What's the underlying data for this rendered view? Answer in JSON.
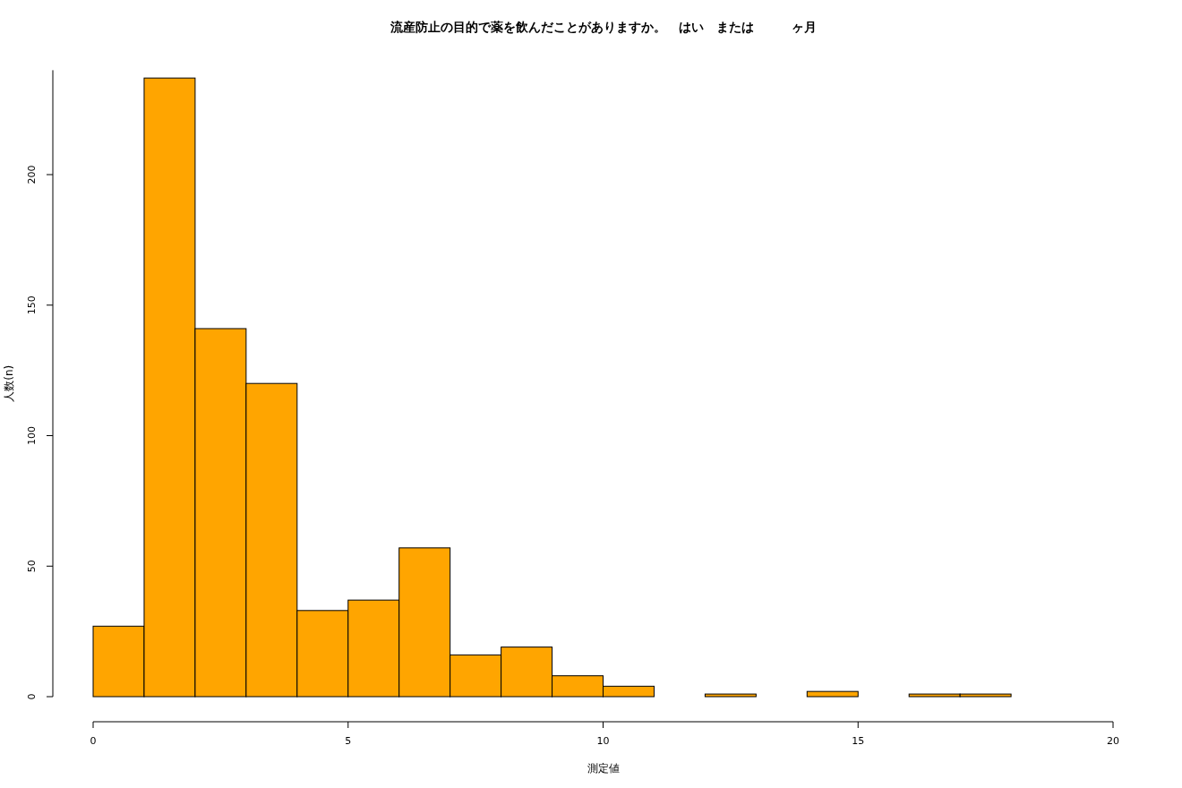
{
  "chart_data": {
    "type": "histogram",
    "title": "流産防止の目的で薬を飲んだことがありますか。　はい　または　　　ヶ月",
    "xlabel": "測定値",
    "ylabel": "人数(n)",
    "bins": [
      0,
      1,
      2,
      3,
      4,
      5,
      6,
      7,
      8,
      9,
      10,
      11,
      12,
      13,
      14,
      15,
      16,
      17,
      18
    ],
    "values": [
      27,
      237,
      141,
      120,
      33,
      37,
      57,
      16,
      19,
      8,
      4,
      0,
      1,
      0,
      2,
      0,
      1,
      1
    ],
    "color": "#ffa500",
    "xlim": [
      0,
      20
    ],
    "xticks": [
      0,
      5,
      10,
      15,
      20
    ],
    "ylim": [
      0,
      240
    ],
    "yticks": [
      0,
      50,
      100,
      150,
      200
    ],
    "grid": false
  }
}
